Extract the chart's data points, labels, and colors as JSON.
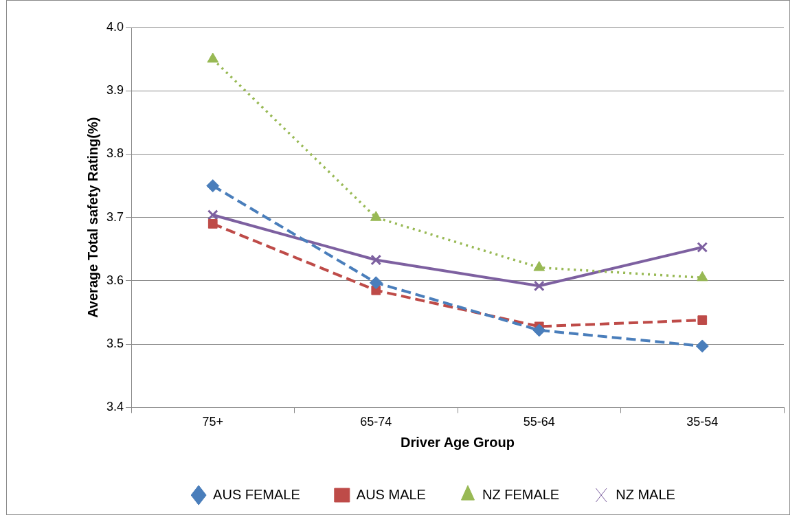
{
  "chart_data": {
    "type": "line",
    "xlabel": "Driver Age Group",
    "ylabel": "Average Total safety Rating(%)",
    "categories": [
      "75+",
      "65-74",
      "55-64",
      "35-54"
    ],
    "series": [
      {
        "name": "AUS FEMALE",
        "color": "#4a7ebb",
        "values": [
          3.75,
          3.597,
          3.522,
          3.497
        ],
        "marker": "diamond",
        "line_style": "dashed"
      },
      {
        "name": "AUS MALE",
        "color": "#be4b48",
        "values": [
          3.69,
          3.585,
          3.528,
          3.538
        ],
        "marker": "square",
        "line_style": "dashed"
      },
      {
        "name": "NZ FEMALE",
        "color": "#98b954",
        "values": [
          3.95,
          3.7,
          3.621,
          3.605
        ],
        "marker": "triangle",
        "line_style": "dotted"
      },
      {
        "name": "NZ MALE",
        "color": "#7d60a0",
        "values": [
          3.704,
          3.633,
          3.592,
          3.653
        ],
        "marker": "cross",
        "line_style": "solid"
      }
    ],
    "ylim": [
      3.4,
      4.0
    ],
    "yticks": [
      3.4,
      3.5,
      3.6,
      3.7,
      3.8,
      3.9,
      {
        "value": 4,
        "label": "4.0"
      }
    ],
    "grid": "y",
    "legend": "bottom"
  }
}
